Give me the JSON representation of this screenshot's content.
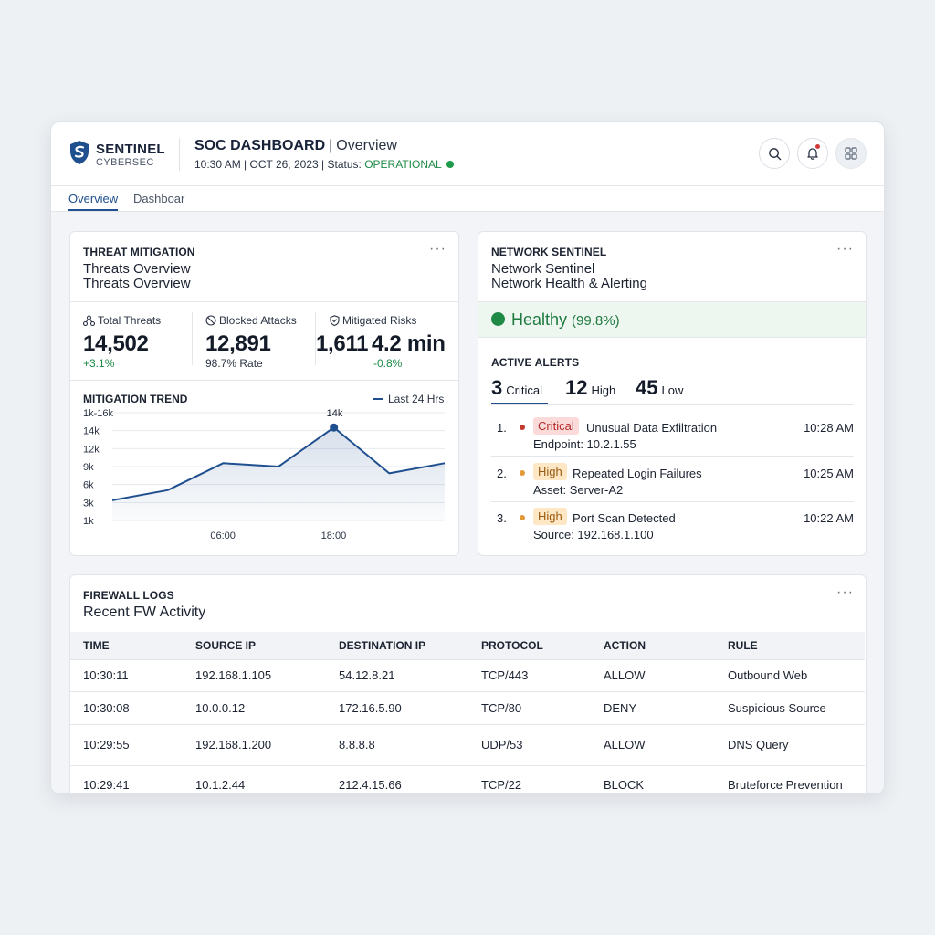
{
  "app": {
    "brand_name": "SENTINEL",
    "brand_sub": "CYBERSEC",
    "title": "SOC DASHBOARD",
    "view": "Overview",
    "time": "10:30 AM",
    "date": "OCT 26, 2023",
    "status_label": "Status:",
    "status_value": "OPERATIONAL"
  },
  "header_actions": {
    "search_icon": "search-icon",
    "notifications_icon": "bell-icon",
    "apps_icon": "grid-icon"
  },
  "tabs": [
    {
      "label": "Overview",
      "active": true
    },
    {
      "label": "Dashboar",
      "active": false
    }
  ],
  "threats": {
    "kicker": "THREAT MITIGATION",
    "title_line1": "Threats Overview",
    "title_line2": "Threats Overview",
    "more": "···",
    "stats": [
      {
        "label": "Total Threats",
        "icon": "network-icon",
        "value": "14,502",
        "sub": "+3.1%"
      },
      {
        "label": "Blocked Attacks",
        "icon": "blocked-icon",
        "value": "12,891",
        "sub": "98.7% Rate"
      },
      {
        "label": "Mitigated Risks",
        "icon": "shield-check-icon",
        "value": "1,611",
        "value2": "4.2 min",
        "sub": "-0.8%"
      }
    ],
    "trend_title": "MITIGATION TREND",
    "legend": "Last 24 Hrs"
  },
  "chart_data": {
    "type": "area",
    "title": "MITIGATION TREND",
    "series": [
      {
        "name": "Last 24 Hrs",
        "values": [
          3,
          4.5,
          8.5,
          8,
          13.8,
          7,
          8.5
        ]
      }
    ],
    "x": [
      0,
      4,
      8,
      12,
      16,
      20,
      24
    ],
    "x_tick_labels": [
      "06:00",
      "18:00"
    ],
    "y_tick_labels": [
      "1k-16k",
      "14k",
      "12k",
      "9k",
      "6k",
      "3k",
      "1k"
    ],
    "peak_label": "14k",
    "grid": true
  },
  "network": {
    "kicker": "NETWORK SENTINEL",
    "title_line1": "Network Sentinel",
    "title_line2": "Network Health & Alerting",
    "more": "···",
    "health_label": "Healthy",
    "health_pct": "(99.8%)",
    "alerts_title": "ACTIVE ALERTS",
    "counts": [
      {
        "value": "3",
        "label": "Critical"
      },
      {
        "value": "12",
        "label": "High"
      },
      {
        "value": "45",
        "label": "Low"
      }
    ],
    "alerts": [
      {
        "num": "1.",
        "severity": "Critical",
        "title": "Unusual Data Exfiltration",
        "detail": "Endpoint: 10.2.1.55",
        "time": "10:28 AM",
        "dot": "#c0392b",
        "badge_bg": "#fbdada",
        "badge_fg": "#b52a2a"
      },
      {
        "num": "2.",
        "severity": "High",
        "title": "Repeated Login Failures",
        "detail": "Asset: Server-A2",
        "time": "10:25 AM",
        "dot": "#e39a3b",
        "badge_bg": "#fde7c4",
        "badge_fg": "#9a5a10"
      },
      {
        "num": "3.",
        "severity": "High",
        "title": "Port Scan Detected",
        "detail": "Source: 192.168.1.100",
        "time": "10:22 AM",
        "dot": "#e39a3b",
        "badge_bg": "#fde7c4",
        "badge_fg": "#9a5a10"
      }
    ]
  },
  "firewall": {
    "kicker": "FIREWALL LOGS",
    "title": "Recent FW Activity",
    "more": "···",
    "columns": [
      "TIME",
      "SOURCE IP",
      "DESTINATION IP",
      "PROTOCOL",
      "ACTION",
      "RULE"
    ],
    "rows": [
      [
        "10:30:11",
        "192.168.1.105",
        "54.12.8.21",
        "TCP/443",
        "ALLOW",
        "Outbound Web"
      ],
      [
        "10:30:08",
        "10.0.0.12",
        "172.16.5.90",
        "TCP/80",
        "DENY",
        "Suspicious Source"
      ],
      [
        "10:29:55",
        "192.168.1.200",
        "8.8.8.8",
        "UDP/53",
        "ALLOW",
        "DNS Query"
      ],
      [
        "10:29:41",
        "10.1.2.44",
        "212.4.15.66",
        "TCP/22",
        "BLOCK",
        "Bruteforce Prevention"
      ]
    ]
  },
  "colors": {
    "accent": "#1f4f8f",
    "ok": "#1f8a46",
    "positive": "#1f8a46",
    "critical": "#c0392b",
    "high": "#e39a3b"
  }
}
